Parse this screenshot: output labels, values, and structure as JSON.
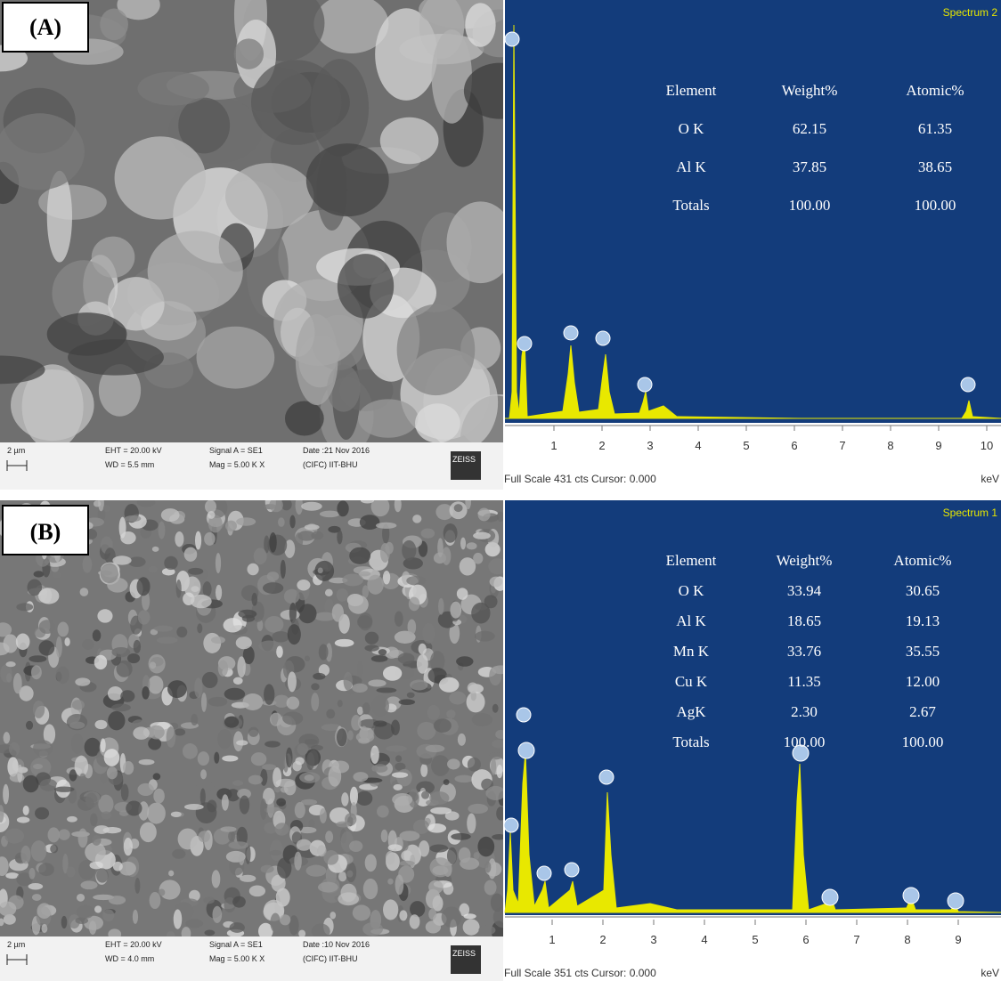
{
  "panels": [
    {
      "label": "(A)",
      "sem_info": [
        "2 µm",
        "EHT = 20.00 kV",
        "WD = 5.5 mm",
        "Signal A = SE1",
        "Mag = 5.00 K X",
        "Date :21 Nov 2016",
        "(CIFC) IIT-BHU",
        "ZEISS"
      ],
      "spectrum_name": "Spectrum 2",
      "table": {
        "header": [
          "Element",
          "Weight%",
          "Atomic%"
        ],
        "rows": [
          [
            "O K",
            "62.15",
            "61.35"
          ],
          [
            "Al K",
            "37.85",
            "38.65"
          ],
          [
            "Totals",
            "100.00",
            "100.00"
          ]
        ]
      },
      "axis_ticks": [
        "1",
        "2",
        "3",
        "4",
        "5",
        "6",
        "7",
        "8",
        "9",
        "10"
      ],
      "axis_unit": "keV",
      "footer": "Full Scale 431 cts Cursor: 0.000"
    },
    {
      "label": "(B)",
      "sem_info": [
        "2 µm",
        "EHT = 20.00 kV",
        "WD = 4.0 mm",
        "Signal A = SE1",
        "Mag = 5.00 K X",
        "Date :10 Nov 2016",
        "(CIFC) IIT-BHU",
        "ZEISS"
      ],
      "spectrum_name": "Spectrum 1",
      "table": {
        "header": [
          "Element",
          "Weight%",
          "Atomic%"
        ],
        "rows": [
          [
            "O K",
            "33.94",
            "30.65"
          ],
          [
            "Al K",
            "18.65",
            "19.13"
          ],
          [
            "Mn K",
            "33.76",
            "35.55"
          ],
          [
            "Cu K",
            "11.35",
            "12.00"
          ],
          [
            "AgK",
            "2.30",
            "2.67"
          ],
          [
            "Totals",
            "100.00",
            "100.00"
          ]
        ]
      },
      "axis_ticks": [
        "1",
        "2",
        "3",
        "4",
        "5",
        "6",
        "7",
        "8",
        "9"
      ],
      "axis_unit": "keV",
      "footer": "Full Scale 351 cts Cursor: 0.000"
    }
  ]
}
